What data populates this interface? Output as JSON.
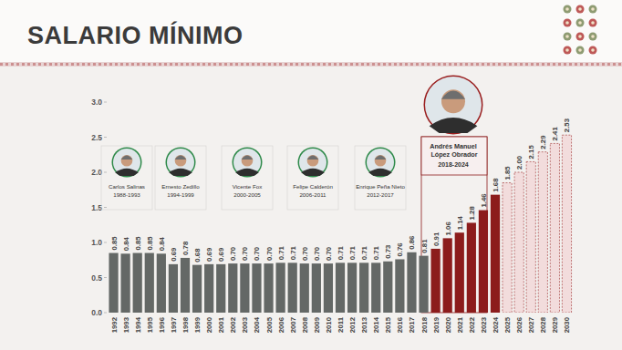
{
  "chart_data": {
    "type": "bar",
    "title": "SALARIO MÍNIMO",
    "categories": [
      "1992",
      "1993",
      "1994",
      "1995",
      "1996",
      "1997",
      "1998",
      "1999",
      "2000",
      "2001",
      "2002",
      "2003",
      "2004",
      "2005",
      "2006",
      "2007",
      "2008",
      "2009",
      "2010",
      "2011",
      "2012",
      "2013",
      "2014",
      "2015",
      "2016",
      "2017",
      "2018",
      "2019",
      "2020",
      "2021",
      "2022",
      "2023",
      "2024",
      "2025",
      "2026",
      "2027",
      "2028",
      "2029",
      "2030"
    ],
    "values": [
      0.85,
      0.84,
      0.85,
      0.85,
      0.84,
      0.69,
      0.78,
      0.68,
      0.69,
      0.69,
      0.7,
      0.7,
      0.7,
      0.7,
      0.71,
      0.71,
      0.7,
      0.7,
      0.7,
      0.71,
      0.71,
      0.71,
      0.71,
      0.73,
      0.76,
      0.86,
      0.81,
      0.91,
      1.06,
      1.14,
      1.28,
      1.46,
      1.68,
      1.85,
      2.0,
      2.15,
      2.29,
      2.41,
      2.53
    ],
    "value_labels": [
      "0.85",
      "0.84",
      "0.85",
      "0.85",
      "0.84",
      "0.69",
      "0.78",
      "0.68",
      "0.69",
      "0.69",
      "0.70",
      "0.70",
      "0.70",
      "0.70",
      "0.71",
      "0.71",
      "0.70",
      "0.70",
      "0.70",
      "0.71",
      "0.71",
      "0.71",
      "0.71",
      "0.73",
      "0.76",
      "0.86",
      "0.81",
      "0.91",
      "1.06",
      "1.14",
      "1.28",
      "1.46",
      "1.68",
      "1.85",
      "2.00",
      "2.15",
      "2.29",
      "2.41",
      "2.53"
    ],
    "colors": [
      "#646866",
      "#646866",
      "#646866",
      "#646866",
      "#646866",
      "#646866",
      "#646866",
      "#646866",
      "#646866",
      "#646866",
      "#646866",
      "#646866",
      "#646866",
      "#646866",
      "#646866",
      "#646866",
      "#646866",
      "#646866",
      "#646866",
      "#646866",
      "#646866",
      "#646866",
      "#646866",
      "#646866",
      "#646866",
      "#646866",
      "#646866",
      "#8c1c1c",
      "#8c1c1c",
      "#8c1c1c",
      "#8c1c1c",
      "#8c1c1c",
      "#8c1c1c",
      "#f2dcdc",
      "#f2dcdc",
      "#f2dcdc",
      "#f2dcdc",
      "#f2dcdc",
      "#f2dcdc"
    ],
    "ylim": [
      0,
      3
    ],
    "yticks": [
      {
        "value": 0,
        "label": "0.0"
      },
      0.5,
      {
        "value": 1,
        "label": "1.0"
      },
      1.5,
      {
        "value": 2,
        "label": "2.0"
      },
      2.5,
      {
        "value": 3,
        "label": "3.0"
      }
    ],
    "grid": false,
    "data_labels": true,
    "annotations": [
      {
        "text": "Carlos Salinas",
        "period": "1988-1993"
      },
      {
        "text": "Ernesto Zedillo",
        "period": "1994-1999"
      },
      {
        "text": "Vicente Fox",
        "period": "2000-2005"
      },
      {
        "text": "Felipe Calderón",
        "period": "2006-2011"
      },
      {
        "text": "Enrique Peña Nieto",
        "period": "2012-2017"
      },
      {
        "text": "Andrés Manuel López Obrador",
        "period": "2018-2024"
      }
    ]
  }
}
